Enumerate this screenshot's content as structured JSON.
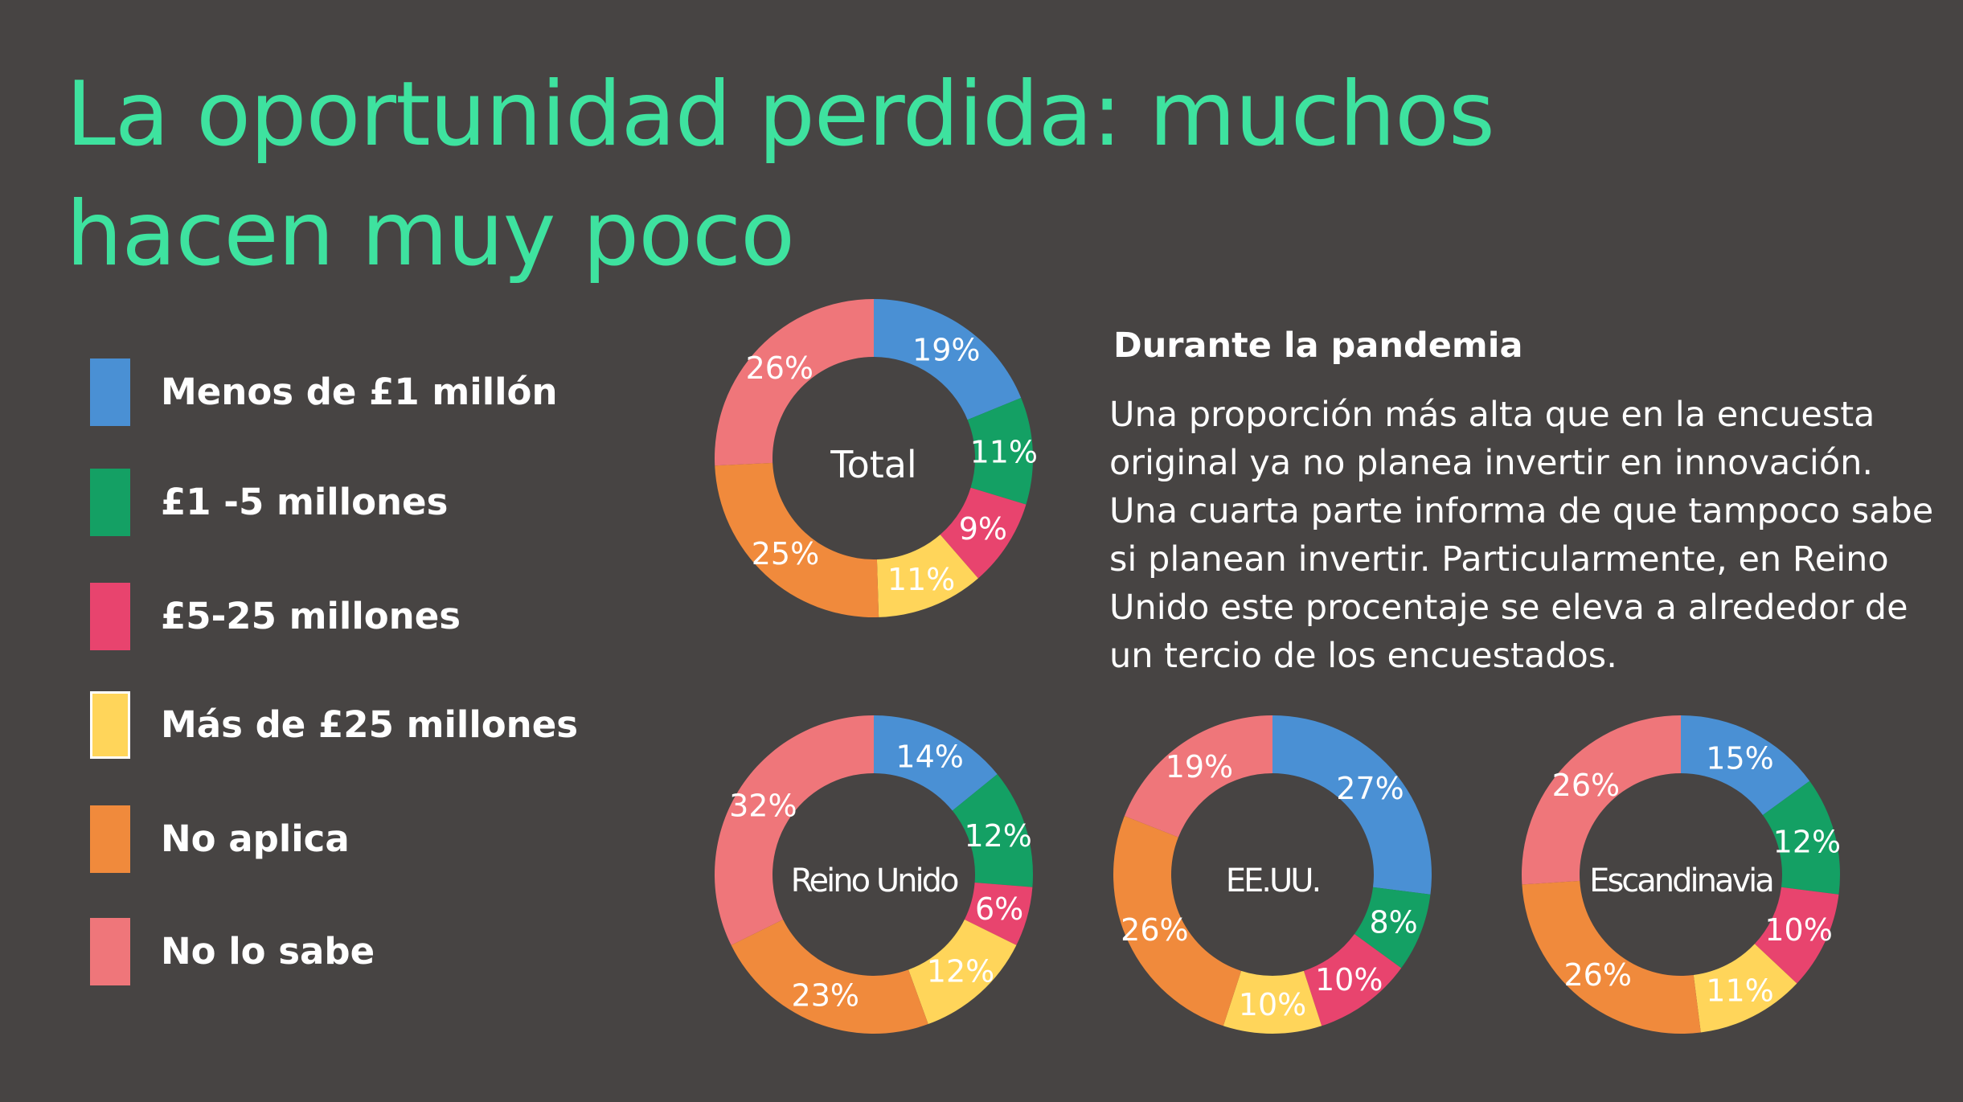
{
  "title": "La oportunidad perdida: muchos hacen muy poco",
  "side_heading": "Durante la pandemia",
  "side_text": "Una proporción más alta que en la encuesta original ya no planea invertir en innovación. Una cuarta parte informa de que tampoco sabe si planean invertir. Particularmente, en Reino Unido este procentaje se eleva a alrededor de un tercio de los encuestados.",
  "legend": [
    {
      "label": "Menos de £1 millón",
      "color": "#4a90d4"
    },
    {
      "label": "£1 -5 millones",
      "color": "#14a064"
    },
    {
      "label": "£5-25 millones",
      "color": "#e8446e"
    },
    {
      "label": "Más de £25 millones",
      "color": "#ffd55a"
    },
    {
      "label": "No aplica",
      "color": "#f08a3c"
    },
    {
      "label": "No lo sabe",
      "color": "#ef767a"
    }
  ],
  "chart_data": [
    {
      "type": "pie",
      "title": "Total",
      "categories": [
        "Menos de £1 millón",
        "£1 -5 millones",
        "£5-25 millones",
        "Más de £25 millones",
        "No aplica",
        "No lo sabe"
      ],
      "values": [
        19,
        11,
        9,
        11,
        25,
        26
      ],
      "labels": [
        "19%",
        "11%",
        "9%",
        "11%",
        "25%",
        "26%"
      ]
    },
    {
      "type": "pie",
      "title": "Reino Unido",
      "categories": [
        "Menos de £1 millón",
        "£1 -5 millones",
        "£5-25 millones",
        "Más de £25 millones",
        "No aplica",
        "No lo sabe"
      ],
      "values": [
        14,
        12,
        6,
        12,
        23,
        32
      ],
      "labels": [
        "14%",
        "12%",
        "6%",
        "12%",
        "23%",
        "32%"
      ]
    },
    {
      "type": "pie",
      "title": "EE.UU.",
      "categories": [
        "Menos de £1 millón",
        "£1 -5 millones",
        "£5-25 millones",
        "Más de £25 millones",
        "No aplica",
        "No lo sabe"
      ],
      "values": [
        27,
        8,
        10,
        10,
        26,
        19
      ],
      "labels": [
        "27%",
        "8%",
        "10%",
        "10%",
        "26%",
        "19%"
      ]
    },
    {
      "type": "pie",
      "title": "Escandinavia",
      "categories": [
        "Menos de £1 millón",
        "£1 -5 millones",
        "£5-25 millones",
        "Más de £25 millones",
        "No aplica",
        "No lo sabe"
      ],
      "values": [
        15,
        12,
        10,
        11,
        26,
        26
      ],
      "labels": [
        "15%",
        "12%",
        "10%",
        "11%",
        "26%",
        "26%"
      ]
    }
  ]
}
